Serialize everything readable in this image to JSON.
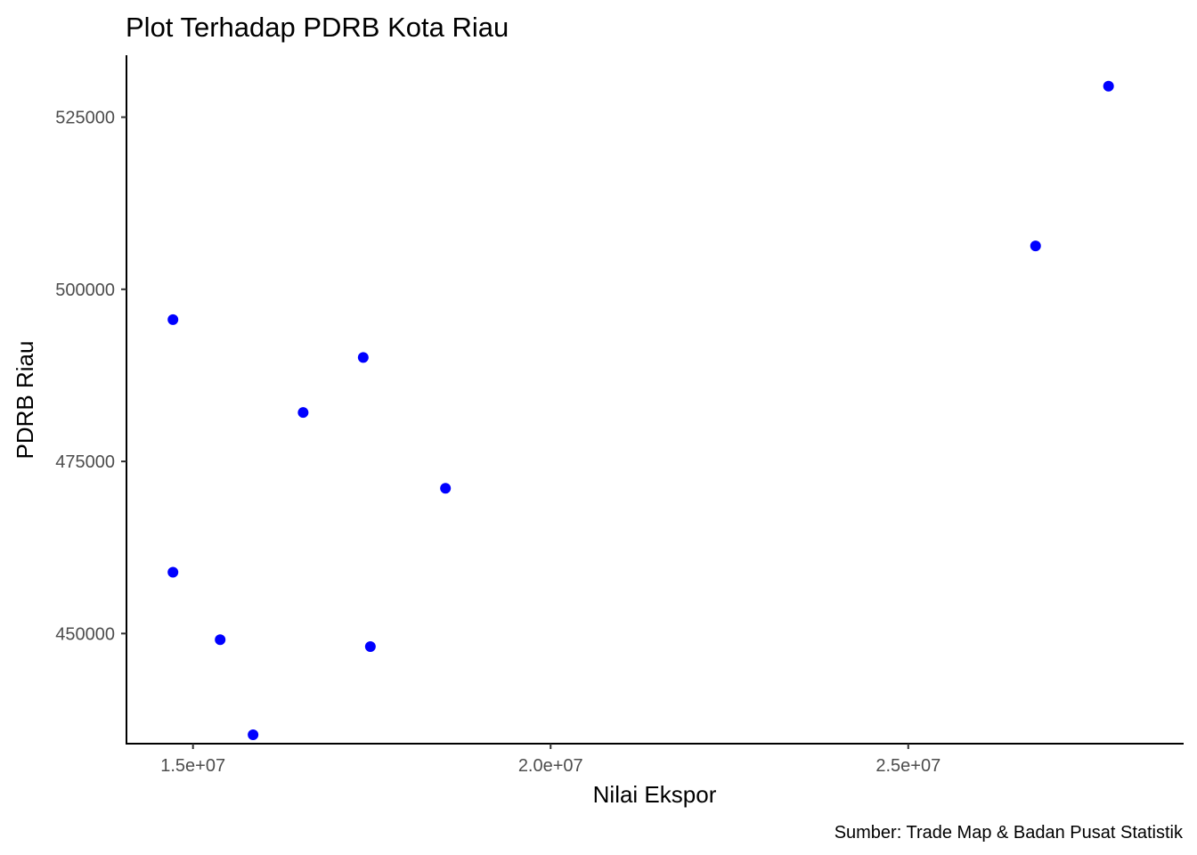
{
  "chart_data": {
    "type": "scatter",
    "title": "Plot Terhadap PDRB Kota Riau",
    "xlabel": "Nilai Ekspor",
    "ylabel": "PDRB Riau",
    "caption": "Sumber:  Trade Map & Badan Pusat Statistik",
    "xlim": [
      14070000,
      28850000
    ],
    "ylim": [
      434000,
      534000
    ],
    "x_ticks": [
      {
        "value": 15000000,
        "label": "1.5e+07"
      },
      {
        "value": 20000000,
        "label": "2.0e+07"
      },
      {
        "value": 25000000,
        "label": "2.5e+07"
      }
    ],
    "y_ticks": [
      {
        "value": 450000,
        "label": "450000"
      },
      {
        "value": 475000,
        "label": "475000"
      },
      {
        "value": 500000,
        "label": "500000"
      },
      {
        "value": 525000,
        "label": "525000"
      }
    ],
    "grid": false,
    "point_color": "#0000ff",
    "points": [
      {
        "x": 14720000,
        "y": 495600
      },
      {
        "x": 14720000,
        "y": 458900
      },
      {
        "x": 15380000,
        "y": 449100
      },
      {
        "x": 15840000,
        "y": 435300
      },
      {
        "x": 16540000,
        "y": 482100
      },
      {
        "x": 17380000,
        "y": 490100
      },
      {
        "x": 17480000,
        "y": 448100
      },
      {
        "x": 18530000,
        "y": 471100
      },
      {
        "x": 26780000,
        "y": 506300
      },
      {
        "x": 27800000,
        "y": 529500
      }
    ]
  }
}
